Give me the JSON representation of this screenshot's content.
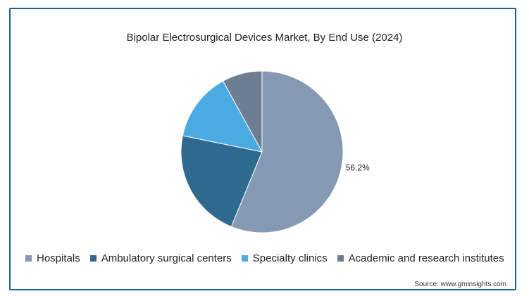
{
  "chart_data": {
    "type": "pie",
    "title": "Bipolar Electrosurgical Devices Market, By End Use (2024)",
    "categories": [
      "Hospitals",
      "Ambulatory surgical centers",
      "Specialty clinics",
      "Academic and research institutes"
    ],
    "values": [
      56.2,
      22.0,
      13.8,
      8.0
    ],
    "colors": [
      "#8699b3",
      "#2e6a8e",
      "#4aabe0",
      "#6e7e92"
    ],
    "data_labels": [
      "56.2%",
      "",
      "",
      ""
    ],
    "legend_position": "bottom"
  },
  "source": "Source: www.gminsights.com"
}
